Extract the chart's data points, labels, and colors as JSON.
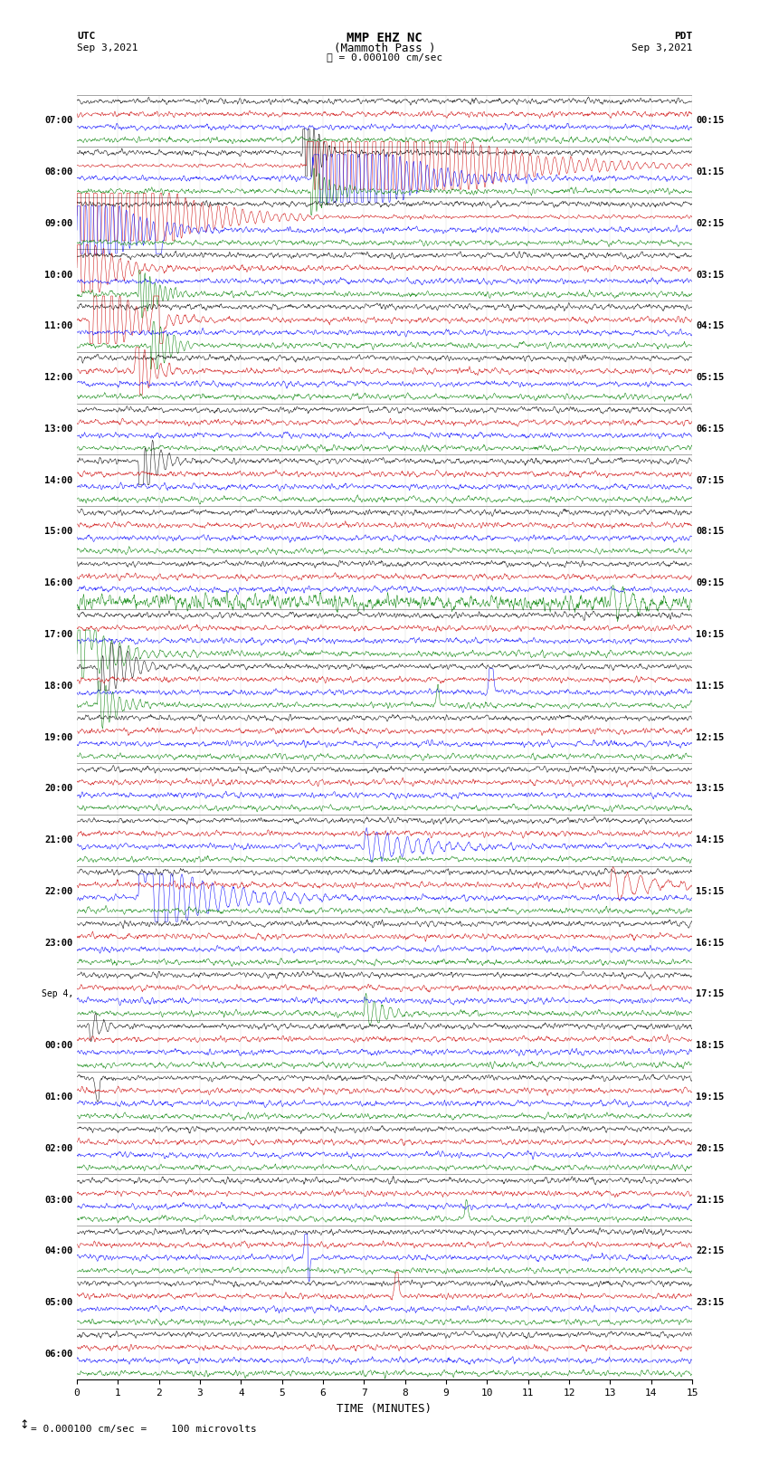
{
  "title_line1": "MMP EHZ NC",
  "title_line2": "(Mammoth Pass )",
  "scale_label": "= 0.000100 cm/sec",
  "utc_label": "UTC",
  "utc_date": "Sep 3,2021",
  "pdt_label": "PDT",
  "pdt_date": "Sep 3,2021",
  "xlabel": "TIME (MINUTES)",
  "footer": "= 0.000100 cm/sec =    100 microvolts",
  "bg_color": "#ffffff",
  "trace_colors": [
    "black",
    "#cc0000",
    "blue",
    "green"
  ],
  "left_times": [
    "07:00",
    "08:00",
    "09:00",
    "10:00",
    "11:00",
    "12:00",
    "13:00",
    "14:00",
    "15:00",
    "16:00",
    "17:00",
    "18:00",
    "19:00",
    "20:00",
    "21:00",
    "22:00",
    "23:00",
    "Sep 4,",
    "00:00",
    "01:00",
    "02:00",
    "03:00",
    "04:00",
    "05:00",
    "06:00"
  ],
  "right_times": [
    "00:15",
    "01:15",
    "02:15",
    "03:15",
    "04:15",
    "05:15",
    "06:15",
    "07:15",
    "08:15",
    "09:15",
    "10:15",
    "11:15",
    "12:15",
    "13:15",
    "14:15",
    "15:15",
    "16:15",
    "17:15",
    "18:15",
    "19:15",
    "20:15",
    "21:15",
    "22:15",
    "23:15"
  ],
  "n_rows": 25,
  "n_traces_per_row": 4,
  "minutes_per_row": 15,
  "xmin": 0,
  "xmax": 15,
  "xticks": [
    0,
    1,
    2,
    3,
    4,
    5,
    6,
    7,
    8,
    9,
    10,
    11,
    12,
    13,
    14,
    15
  ],
  "figwidth": 8.5,
  "figheight": 16.13,
  "dpi": 100
}
